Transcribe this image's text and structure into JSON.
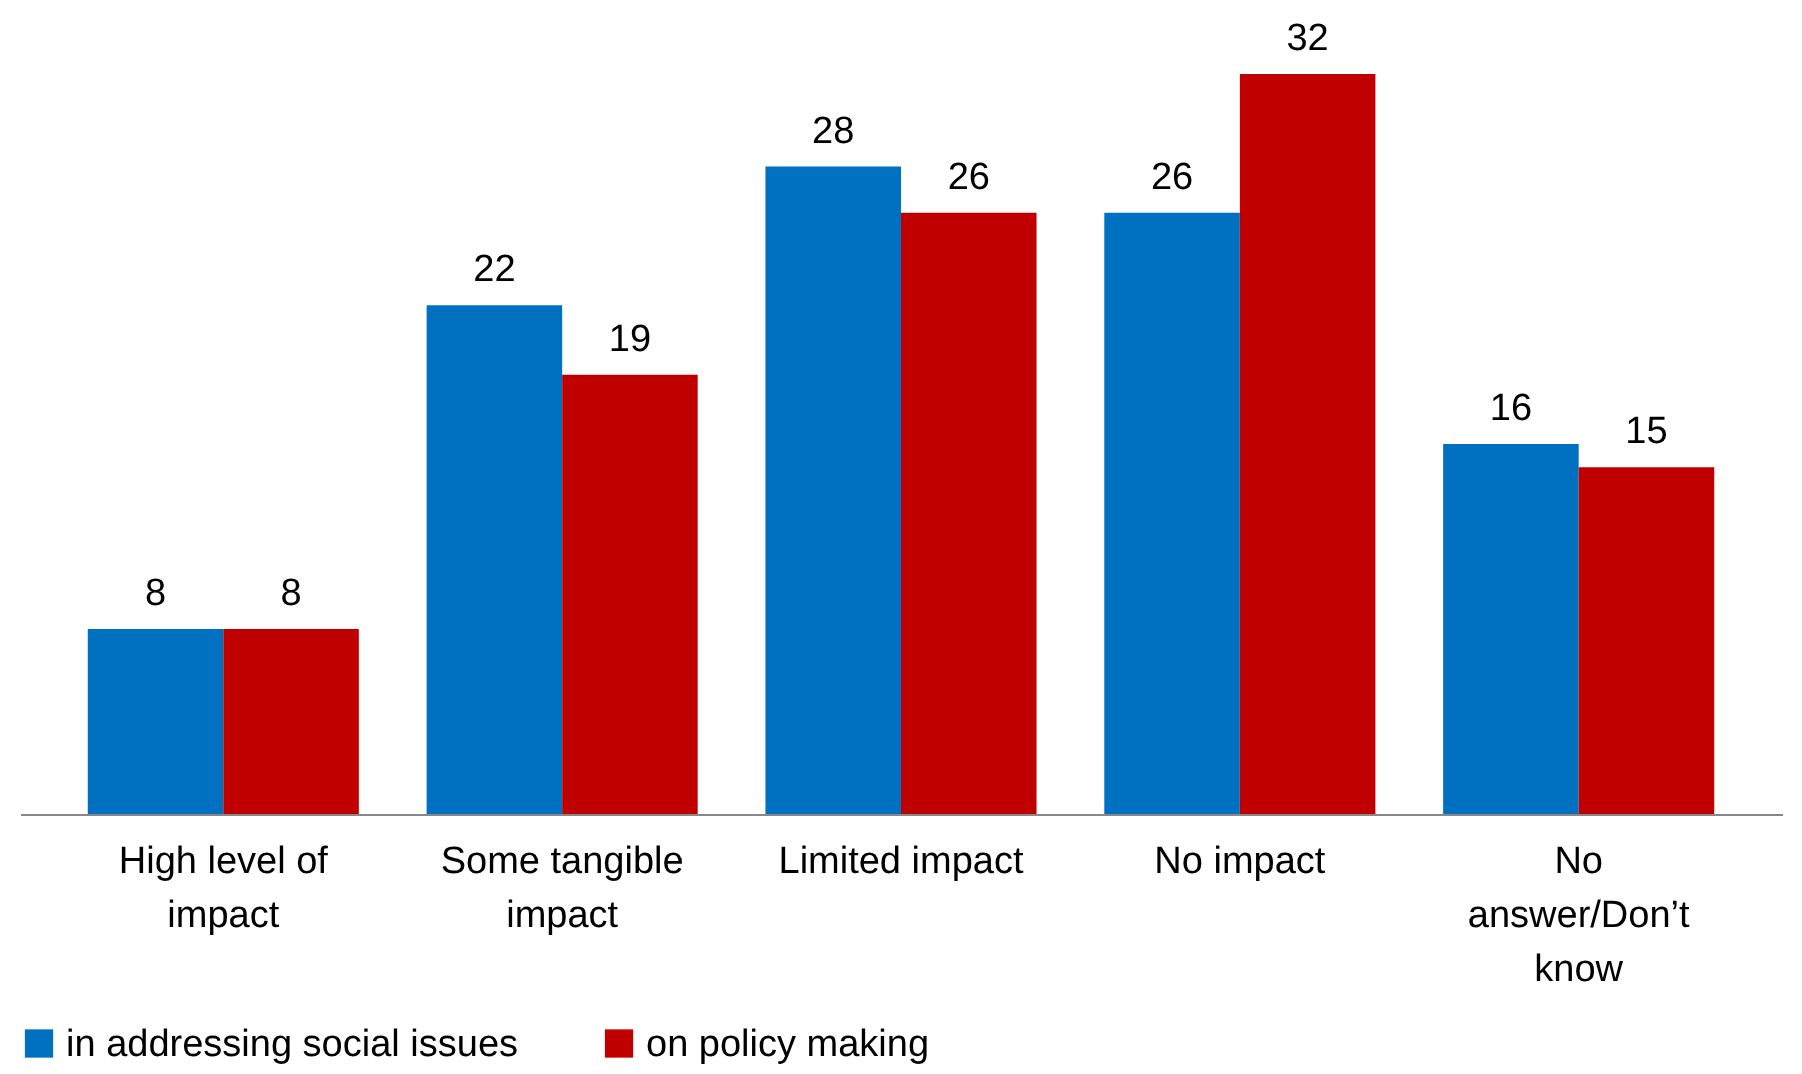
{
  "chart_data": {
    "type": "bar",
    "categories": [
      "High level of impact",
      "Some tangible impact",
      "Limited impact",
      "No impact",
      "No answer/Don’t know"
    ],
    "series": [
      {
        "name": "in addressing social issues",
        "color": "#0070c0",
        "values": [
          8,
          22,
          28,
          26,
          16
        ]
      },
      {
        "name": "on policy making",
        "color": "#c00000",
        "values": [
          8,
          19,
          26,
          32,
          15
        ]
      }
    ],
    "data_labels": true,
    "legend": "bottom",
    "grid": false
  }
}
